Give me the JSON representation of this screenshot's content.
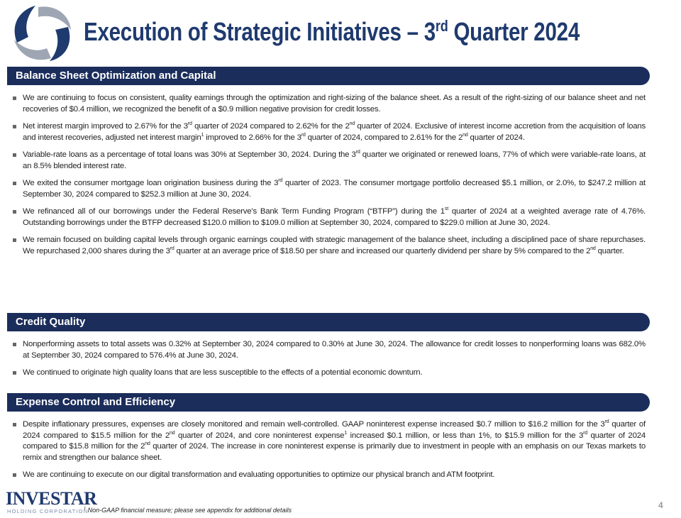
{
  "header": {
    "title": [
      {
        "text": "Execution of Strategic Initiatives – 3"
      },
      {
        "sup": "rd"
      },
      {
        "text": " Quarter 2024"
      }
    ]
  },
  "sections": [
    {
      "heading": "Balance Sheet Optimization and Capital",
      "bullets": [
        [
          {
            "text": "We are continuing to focus on consistent, quality earnings through the optimization and right-sizing of the balance sheet. As a result of the right-sizing of our balance sheet and net recoveries of $0.4 million, we recognized the benefit of a $0.9 million negative provision for credit losses."
          }
        ],
        [
          {
            "text": "Net interest margin improved to 2.67% for the 3"
          },
          {
            "sup": "rd"
          },
          {
            "text": " quarter of 2024 compared to 2.62% for the 2"
          },
          {
            "sup": "nd"
          },
          {
            "text": " quarter of 2024. Exclusive of interest income accretion from the acquisition of loans and interest recoveries, adjusted net interest margin"
          },
          {
            "sup": "1"
          },
          {
            "text": " improved to 2.66% for the 3"
          },
          {
            "sup": "rd"
          },
          {
            "text": " quarter of 2024, compared to 2.61% for the 2"
          },
          {
            "sup": "nd"
          },
          {
            "text": " quarter of 2024."
          }
        ],
        [
          {
            "text": "Variable-rate loans as a percentage of total loans was 30% at September 30, 2024. During the 3"
          },
          {
            "sup": "rd"
          },
          {
            "text": " quarter we originated or renewed loans, 77% of which were variable-rate loans, at an 8.5% blended interest rate."
          }
        ],
        [
          {
            "text": "We exited the consumer mortgage loan origination business during the 3"
          },
          {
            "sup": "rd"
          },
          {
            "text": " quarter of 2023. The consumer mortgage portfolio decreased $5.1 million, or 2.0%, to $247.2 million at September 30, 2024 compared to $252.3 million at June 30, 2024."
          }
        ],
        [
          {
            "text": "We refinanced all of our borrowings under the Federal Reserve’s Bank Term Funding Program (“BTFP”) during the 1"
          },
          {
            "sup": "st"
          },
          {
            "text": " quarter of 2024 at a weighted average rate of 4.76%. Outstanding borrowings under the BTFP decreased $120.0 million to $109.0 million at September 30, 2024, compared to $229.0 million at June 30, 2024."
          }
        ],
        [
          {
            "text": "We remain focused on building capital levels through organic earnings coupled with strategic management of the balance sheet, including a disciplined pace of share repurchases. We repurchased 2,000 shares during the 3"
          },
          {
            "sup": "rd"
          },
          {
            "text": " quarter at an average price of $18.50 per share and increased our quarterly dividend per share by 5% compared to the  2"
          },
          {
            "sup": "nd"
          },
          {
            "text": " quarter."
          }
        ]
      ]
    },
    {
      "heading": "Credit Quality",
      "bullets": [
        [
          {
            "text": "Nonperforming assets to total assets was 0.32% at September 30, 2024 compared to 0.30% at June 30, 2024. The allowance for credit losses to nonperforming loans was 682.0% at September 30, 2024 compared to 576.4% at June 30, 2024."
          }
        ],
        [
          {
            "text": "We continued to originate high quality loans that are less susceptible to the effects of a potential economic downturn."
          }
        ]
      ]
    },
    {
      "heading": "Expense Control and Efficiency",
      "bullets": [
        [
          {
            "text": "Despite inflationary pressures, expenses are closely monitored and remain well-controlled. GAAP noninterest expense increased $0.7 million to $16.2 million for the 3"
          },
          {
            "sup": "rd"
          },
          {
            "text": " quarter of 2024 compared to $15.5 million for the 2"
          },
          {
            "sup": "nd"
          },
          {
            "text": " quarter of 2024, and core noninterest expense"
          },
          {
            "sup": "1"
          },
          {
            "text": " increased $0.1 million, or less than 1%, to $15.9 million for the 3"
          },
          {
            "sup": "rd"
          },
          {
            "text": " quarter of 2024 compared to $15.8 million for the 2"
          },
          {
            "sup": "nd"
          },
          {
            "text": " quarter of 2024. The increase in core noninterest expense is primarily due to investment in people with an emphasis on our Texas markets to remix and strengthen our balance sheet."
          }
        ],
        [
          {
            "text": "We are continuing to execute on our digital transformation and evaluating opportunities to optimize our physical branch and ATM footprint."
          }
        ]
      ]
    }
  ],
  "footer": {
    "logo_name": "INVESTAR",
    "logo_sub": "HOLDING CORPORATION",
    "footnote": [
      {
        "sup": "1"
      },
      {
        "text": " Non-GAAP financial measure; please see appendix for additional details"
      }
    ],
    "page_number": "4"
  }
}
